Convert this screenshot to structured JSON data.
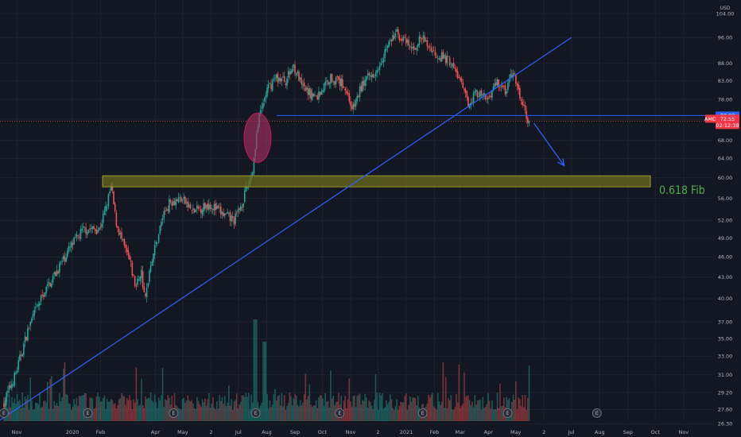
{
  "chart_data": {
    "type": "candlestick",
    "symbol": "AMD",
    "currency": "USD",
    "y_axis": {
      "scale": "log",
      "ylim": [
        25.3,
        108
      ],
      "ticks": [
        26.3,
        27.6,
        29.2,
        31.0,
        33.0,
        35.0,
        37.0,
        40.0,
        43.0,
        46.0,
        49.0,
        52.0,
        56.0,
        60.0,
        64.0,
        68.0,
        73.0,
        78.0,
        83.0,
        88.0,
        96.0,
        104.0
      ],
      "currency_label": "USD"
    },
    "x_axis": {
      "ticks": [
        {
          "label": "Nov",
          "day": 0
        },
        {
          "label": "2020",
          "day": 61
        },
        {
          "label": "Feb",
          "day": 92
        },
        {
          "label": "Apr",
          "day": 152
        },
        {
          "label": "May",
          "day": 182
        },
        {
          "label": "2",
          "day": 213
        },
        {
          "label": "Jul",
          "day": 243
        },
        {
          "label": "Aug",
          "day": 274
        },
        {
          "label": "Sep",
          "day": 305
        },
        {
          "label": "Oct",
          "day": 335
        },
        {
          "label": "Nov",
          "day": 366
        },
        {
          "label": "2",
          "day": 396
        },
        {
          "label": "2021",
          "day": 427
        },
        {
          "label": "Feb",
          "day": 458
        },
        {
          "label": "Mar",
          "day": 486
        },
        {
          "label": "Apr",
          "day": 517
        },
        {
          "label": "May",
          "day": 547
        },
        {
          "label": "2",
          "day": 578
        },
        {
          "label": "Jul",
          "day": 608
        },
        {
          "label": "Aug",
          "day": 639
        },
        {
          "label": "Sep",
          "day": 670
        },
        {
          "label": "Oct",
          "day": 700
        },
        {
          "label": "Nov",
          "day": 731
        }
      ]
    },
    "price_path": [
      [
        -14,
        28.0
      ],
      [
        0,
        31.0
      ],
      [
        15,
        36.5
      ],
      [
        30,
        40.5
      ],
      [
        50,
        45.0
      ],
      [
        60,
        47.5
      ],
      [
        75,
        50.5
      ],
      [
        92,
        50.5
      ],
      [
        100,
        54.5
      ],
      [
        105,
        58.5
      ],
      [
        110,
        52.0
      ],
      [
        118,
        48.0
      ],
      [
        125,
        45.5
      ],
      [
        132,
        41.5
      ],
      [
        138,
        44.0
      ],
      [
        142,
        39.5
      ],
      [
        148,
        45.0
      ],
      [
        155,
        48.5
      ],
      [
        162,
        53.0
      ],
      [
        170,
        55.5
      ],
      [
        182,
        56.0
      ],
      [
        195,
        53.5
      ],
      [
        213,
        55.0
      ],
      [
        228,
        53.0
      ],
      [
        240,
        52.0
      ],
      [
        248,
        55.0
      ],
      [
        255,
        58.5
      ],
      [
        260,
        61.5
      ],
      [
        264,
        69.0
      ],
      [
        268,
        74.0
      ],
      [
        275,
        80.0
      ],
      [
        285,
        84.0
      ],
      [
        296,
        83.0
      ],
      [
        305,
        87.5
      ],
      [
        315,
        81.0
      ],
      [
        330,
        78.5
      ],
      [
        345,
        84.0
      ],
      [
        360,
        82.0
      ],
      [
        370,
        75.5
      ],
      [
        380,
        82.0
      ],
      [
        395,
        86.0
      ],
      [
        407,
        93.0
      ],
      [
        418,
        97.5
      ],
      [
        435,
        92.0
      ],
      [
        445,
        96.0
      ],
      [
        460,
        91.0
      ],
      [
        475,
        89.0
      ],
      [
        486,
        84.0
      ],
      [
        496,
        77.0
      ],
      [
        505,
        80.0
      ],
      [
        517,
        78.0
      ],
      [
        528,
        83.0
      ],
      [
        537,
        80.0
      ],
      [
        545,
        85.5
      ],
      [
        552,
        79.5
      ],
      [
        558,
        75.0
      ],
      [
        562,
        72.55
      ]
    ],
    "current_price": 72.55,
    "current_price_label": "72.55",
    "countdown_label": "02:12:38",
    "line_price": 73.93,
    "line_price_label": "73.93",
    "symbol_tag": "AMD",
    "fib_zone": {
      "low": 58.2,
      "high": 60.4,
      "label": "0.618 Fib"
    },
    "support_line_price": 73.93,
    "trendline": {
      "from": {
        "day": -30,
        "price": 26.0
      },
      "to": {
        "day": 608,
        "price": 96.0
      }
    },
    "projection_arrow": {
      "from": {
        "day": 567,
        "price": 72.0
      },
      "to": {
        "day": 600,
        "price": 62.5
      }
    },
    "highlight_ellipse": {
      "center_day": 264,
      "center_price": 68.6
    },
    "earnings_markers": [
      "E",
      "E",
      "E",
      "E",
      "E",
      "E",
      "E",
      "E"
    ],
    "earnings_days": [
      -14,
      78,
      172,
      262,
      354,
      445,
      538,
      636
    ],
    "colors": {
      "background": "#131722",
      "up": "#26a69a",
      "down": "#ef5350",
      "trendline": "#2962ff",
      "fib_fill": "#6b6a1c",
      "fib_border": "#a09b2d",
      "fib_text": "#4caf50",
      "ellipse_fill": "#b03060",
      "ellipse_stroke": "#c2185b",
      "price_tag": "#f23645",
      "line_tag": "#2962ff"
    }
  }
}
